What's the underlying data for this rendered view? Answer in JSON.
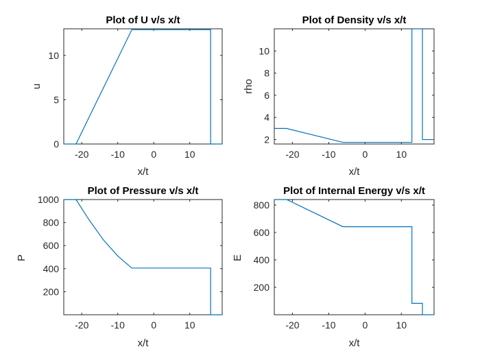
{
  "colors": {
    "line": "#0072BD",
    "axis": "#262626",
    "background": "#ffffff"
  },
  "chart_data": [
    {
      "type": "line",
      "title": "Plot of U v/s x/t",
      "xlabel": "x/t",
      "ylabel": "u",
      "xlim": [
        -25,
        19
      ],
      "ylim": [
        0,
        13
      ],
      "xticks": [
        -20,
        -10,
        0,
        10
      ],
      "yticks": [
        0,
        5,
        10
      ],
      "grid": false,
      "series": [
        {
          "x": [
            -25,
            -21.6,
            -6.1,
            15.8,
            15.8,
            19
          ],
          "y": [
            0,
            0,
            12.9,
            12.9,
            0,
            0
          ]
        }
      ]
    },
    {
      "type": "line",
      "title": "Plot of Density v/s x/t",
      "xlabel": "x/t",
      "ylabel": "rho",
      "xlim": [
        -25,
        19
      ],
      "ylim": [
        1.6,
        12
      ],
      "xticks": [
        -20,
        -10,
        0,
        10
      ],
      "yticks": [
        2,
        4,
        6,
        8,
        10
      ],
      "grid": false,
      "series": [
        {
          "x": [
            -25,
            -21.6,
            -6.1,
            12.9,
            12.9,
            15.8,
            15.8,
            19
          ],
          "y": [
            3.0,
            3.0,
            1.75,
            1.75,
            12.0,
            12.0,
            2.0,
            2.0
          ]
        }
      ]
    },
    {
      "type": "line",
      "title": "Plot of Pressure v/s x/t",
      "xlabel": "x/t",
      "ylabel": "P",
      "xlim": [
        -25,
        19
      ],
      "ylim": [
        0,
        1000
      ],
      "xticks": [
        -20,
        -10,
        0,
        10
      ],
      "yticks": [
        200,
        400,
        600,
        800,
        1000
      ],
      "grid": false,
      "series": [
        {
          "x": [
            -25,
            -21.6,
            -18,
            -14,
            -10,
            -6.1,
            15.8,
            15.8,
            19
          ],
          "y": [
            1000,
            1000,
            825,
            650,
            510,
            405,
            405,
            0,
            0
          ]
        }
      ]
    },
    {
      "type": "line",
      "title": "Plot of Internal Energy v/s x/t",
      "xlabel": "x/t",
      "ylabel": "E",
      "xlim": [
        -25,
        19
      ],
      "ylim": [
        0,
        840
      ],
      "xticks": [
        -20,
        -10,
        0,
        10
      ],
      "yticks": [
        200,
        400,
        600,
        800
      ],
      "grid": false,
      "series": [
        {
          "x": [
            -25,
            -21.6,
            -6.1,
            12.9,
            12.9,
            15.8,
            15.8,
            19
          ],
          "y": [
            840,
            840,
            642,
            642,
            83,
            83,
            0,
            0
          ]
        }
      ]
    }
  ]
}
